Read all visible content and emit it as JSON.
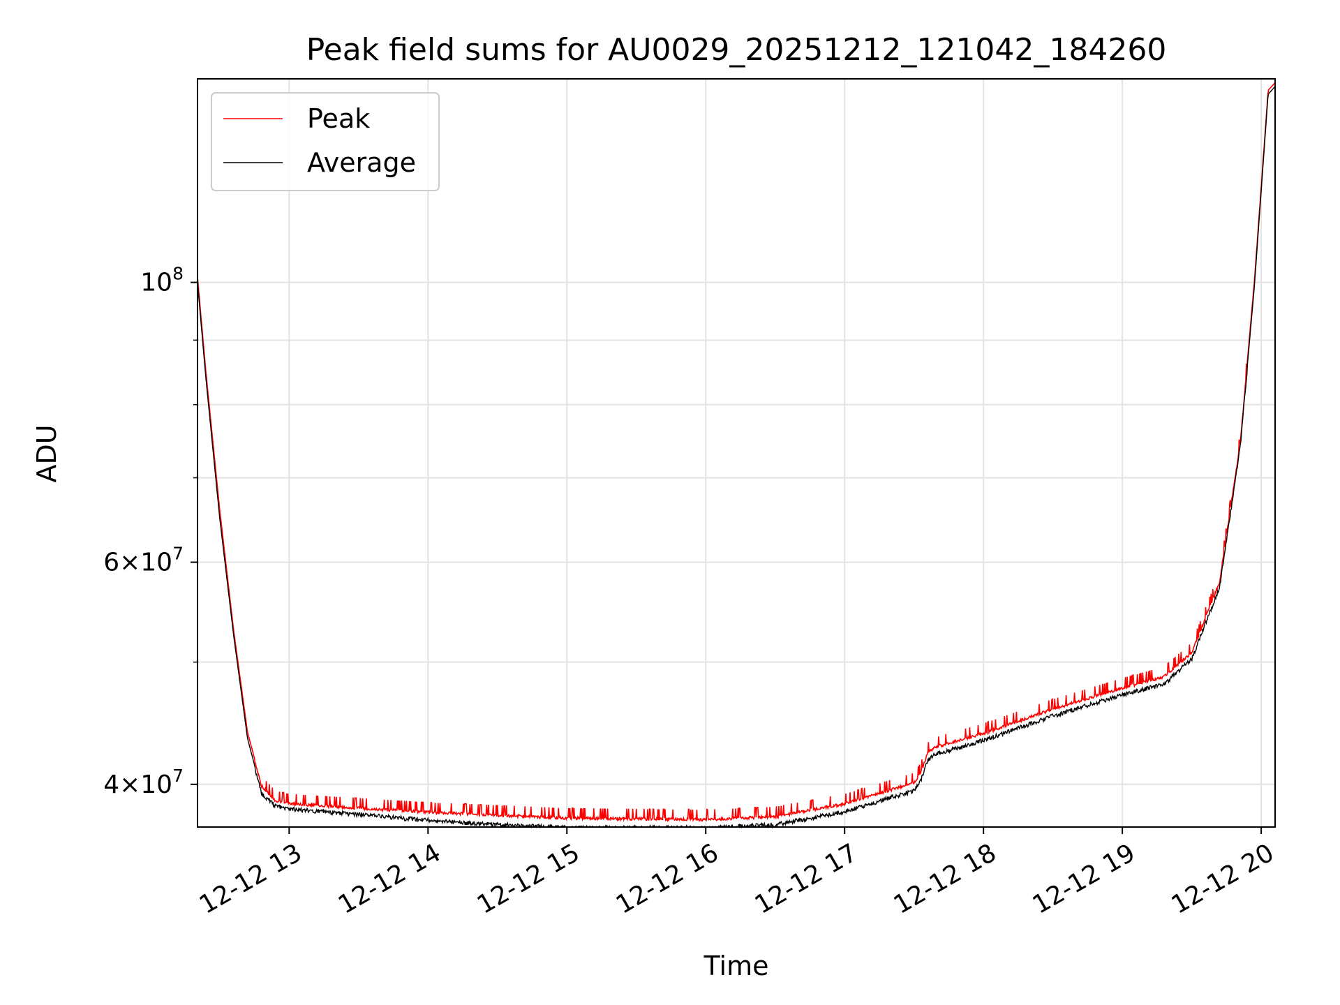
{
  "chart_data": {
    "type": "line",
    "title": "Peak field sums for AU0029_20251212_121042_184260",
    "xlabel": "Time",
    "ylabel": "ADU",
    "yscale": "log",
    "grid": true,
    "legend_position": "top-left",
    "xlim": [
      12.34,
      20.1
    ],
    "ylim": [
      37000000,
      145000000
    ],
    "x_ticks": [
      13,
      14,
      15,
      16,
      17,
      18,
      19,
      20
    ],
    "x_tick_labels": [
      "12-12 13",
      "12-12 14",
      "12-12 15",
      "12-12 16",
      "12-12 17",
      "12-12 18",
      "12-12 19",
      "12-12 20"
    ],
    "y_ticks": [
      40000000,
      60000000,
      100000000
    ],
    "y_tick_labels": [
      {
        "base": "4×10",
        "exp": "7"
      },
      {
        "base": "6×10",
        "exp": "7"
      },
      {
        "base": "10",
        "exp": "8"
      }
    ],
    "y_minor_ticks": [
      50000000,
      70000000,
      80000000,
      90000000
    ],
    "x_units": "hour of 2025-12-12",
    "series": [
      {
        "name": "Peak",
        "color": "#ff0000",
        "noise_amplitude": 0.012,
        "x": [
          12.34,
          12.4,
          12.5,
          12.6,
          12.7,
          12.8,
          12.9,
          13.0,
          13.5,
          14.0,
          14.5,
          15.0,
          15.5,
          16.0,
          16.5,
          17.0,
          17.3,
          17.5,
          17.55,
          17.6,
          17.65,
          18.0,
          18.5,
          19.0,
          19.3,
          19.5,
          19.7,
          19.85,
          19.95,
          20.05,
          20.1
        ],
        "values": [
          101000000,
          85000000,
          66000000,
          53000000,
          44000000,
          40000000,
          38900000,
          38700000,
          38400000,
          38100000,
          37900000,
          37700000,
          37650000,
          37600000,
          37800000,
          38700000,
          39600000,
          40200000,
          41000000,
          42500000,
          42900000,
          44000000,
          46000000,
          47800000,
          48800000,
          51000000,
          58000000,
          75000000,
          100000000,
          142000000,
          144000000
        ]
      },
      {
        "name": "Average",
        "color": "#000000",
        "noise_amplitude": 0.008,
        "x": [
          12.34,
          12.4,
          12.5,
          12.6,
          12.7,
          12.8,
          12.9,
          13.0,
          13.5,
          14.0,
          14.5,
          15.0,
          15.5,
          16.0,
          16.5,
          17.0,
          17.3,
          17.5,
          17.55,
          17.6,
          17.65,
          18.0,
          18.5,
          19.0,
          19.3,
          19.5,
          19.7,
          19.85,
          19.95,
          20.05,
          20.1
        ],
        "values": [
          100000000,
          84000000,
          65000000,
          52500000,
          43500000,
          39500000,
          38600000,
          38400000,
          38000000,
          37600000,
          37300000,
          37100000,
          37100000,
          37100000,
          37300000,
          38200000,
          39100000,
          39700000,
          40500000,
          42000000,
          42400000,
          43500000,
          45500000,
          47300000,
          48200000,
          50500000,
          57500000,
          74500000,
          99000000,
          141000000,
          143000000
        ]
      }
    ]
  }
}
